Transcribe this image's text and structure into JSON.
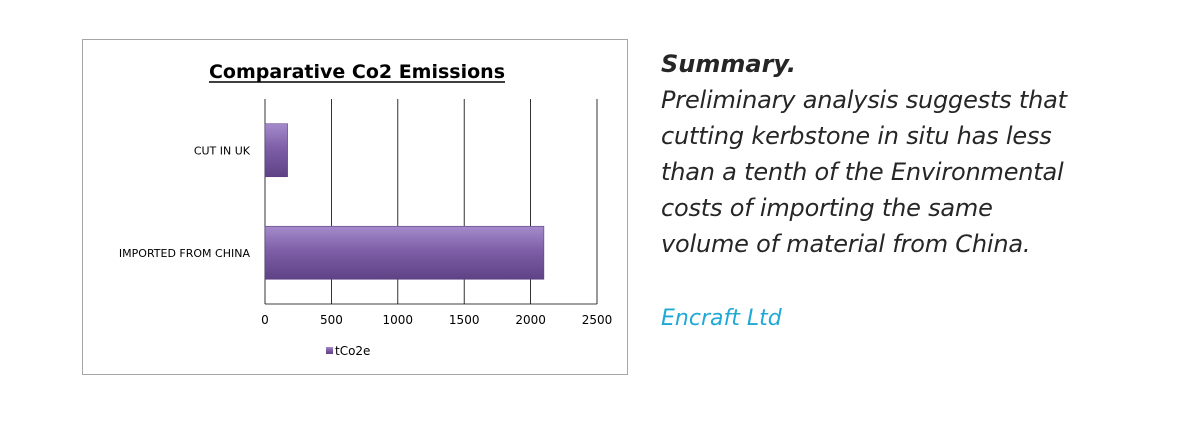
{
  "chart_data": {
    "type": "bar",
    "orientation": "horizontal",
    "title": "Comparative Co2 Emissions",
    "categories": [
      "CUT IN UK",
      "IMPORTED FROM CHINA"
    ],
    "series": [
      {
        "name": "tCo2e",
        "values": [
          170,
          2100
        ],
        "color": "#7e5fa8"
      }
    ],
    "xlim": [
      0,
      2500
    ],
    "xticks": [
      0,
      500,
      1000,
      1500,
      2000,
      2500
    ],
    "tick_labels": [
      "0",
      "500",
      "1000",
      "1500",
      "2000",
      "2500"
    ],
    "grid": true,
    "legend": "bottom"
  },
  "summary": {
    "heading": "Summary.",
    "lines": [
      "Preliminary analysis suggests that",
      "cutting kerbstone in situ has less",
      "than a tenth of the Environmental",
      "costs of importing the same",
      "volume of material from China."
    ],
    "company": "Encraft Ltd",
    "company_color": "#1fa9d6"
  }
}
